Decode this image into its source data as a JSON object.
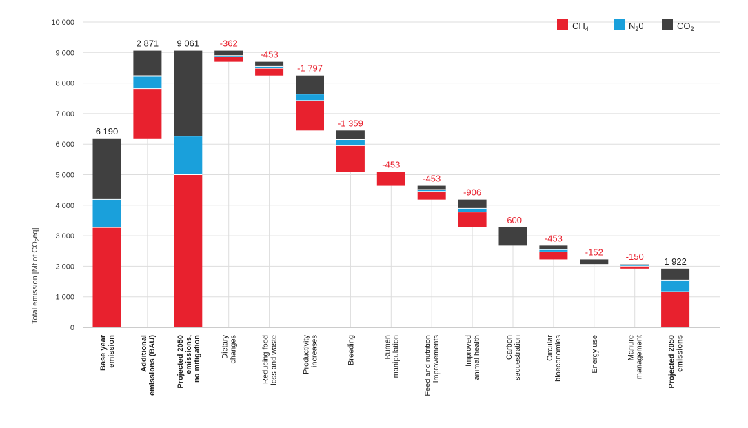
{
  "chart_data": {
    "type": "bar",
    "subtype": "stacked-waterfall",
    "ylabel": "Total emission [Mt of CO",
    "ylabel_sub": "2",
    "ylabel_tail": "eq]",
    "ylim": [
      0,
      10000
    ],
    "yticks": [
      0,
      1000,
      2000,
      3000,
      4000,
      5000,
      6000,
      7000,
      8000,
      9000,
      10000
    ],
    "ytick_labels": [
      "0",
      "1 000",
      "2 000",
      "3 000",
      "4 000",
      "5 000",
      "6 000",
      "7 000",
      "8 000",
      "9 000",
      "10 000"
    ],
    "grid": "horizontal",
    "legend_position": "top-right",
    "legend": [
      {
        "key": "ch4",
        "label": "CH",
        "sub": "4",
        "color": "#e8212e"
      },
      {
        "key": "n2o",
        "label": "N",
        "sub": "2",
        "tail": "0",
        "color": "#1aa0db"
      },
      {
        "key": "co2",
        "label": "CO",
        "sub": "2",
        "color": "#404040"
      }
    ],
    "bars": [
      {
        "name": "base-year-emission",
        "label": [
          "Base year",
          "emission"
        ],
        "bold": true,
        "kind": "total",
        "start": 0,
        "ch4": 3270,
        "n2o": 920,
        "co2": 2000,
        "value_label": "6 190"
      },
      {
        "name": "additional-emissions",
        "label": [
          "Additional",
          "emissions (BAU)"
        ],
        "bold": true,
        "kind": "increase",
        "start": 6190,
        "ch4": 1630,
        "n2o": 420,
        "co2": 821,
        "value_label": "2 871"
      },
      {
        "name": "projected-2050-no-mitigation",
        "label": [
          "Projected 2050",
          "emissions,",
          "no mitigation"
        ],
        "bold": true,
        "kind": "total",
        "start": 0,
        "ch4": 5000,
        "n2o": 1260,
        "co2": 2801,
        "value_label": "9 061"
      },
      {
        "name": "dietary-changes",
        "label": [
          "Dietary",
          "changes"
        ],
        "bold": false,
        "kind": "decrease",
        "start": 8699,
        "ch4": 160,
        "n2o": 40,
        "co2": 162,
        "value_label": "-362"
      },
      {
        "name": "reducing-food-loss",
        "label": [
          "Reducing food",
          "loss and waste"
        ],
        "bold": false,
        "kind": "decrease",
        "start": 8246,
        "ch4": 240,
        "n2o": 60,
        "co2": 153,
        "value_label": "-453"
      },
      {
        "name": "productivity-increases",
        "label": [
          "Productivity",
          "increases"
        ],
        "bold": false,
        "kind": "decrease",
        "start": 6449,
        "ch4": 980,
        "n2o": 210,
        "co2": 607,
        "value_label": "-1 797"
      },
      {
        "name": "breeding",
        "label": [
          "Breeding"
        ],
        "bold": false,
        "kind": "decrease",
        "start": 5090,
        "ch4": 860,
        "n2o": 200,
        "co2": 299,
        "value_label": "-1 359"
      },
      {
        "name": "rumen-manipulation",
        "label": [
          "Rumen",
          "manipulation"
        ],
        "bold": false,
        "kind": "decrease",
        "start": 4637,
        "ch4": 453,
        "n2o": 0,
        "co2": 0,
        "value_label": "-453"
      },
      {
        "name": "feed-nutrition-improvements",
        "label": [
          "Feed and nutrition",
          "improvements"
        ],
        "bold": false,
        "kind": "decrease",
        "start": 4184,
        "ch4": 270,
        "n2o": 60,
        "co2": 123,
        "value_label": "-453"
      },
      {
        "name": "improved-animal-health",
        "label": [
          "Improved",
          "animal health"
        ],
        "bold": false,
        "kind": "decrease",
        "start": 3278,
        "ch4": 500,
        "n2o": 120,
        "co2": 286,
        "value_label": "-906"
      },
      {
        "name": "carbon-sequestration",
        "label": [
          "Carbon",
          "sequestration"
        ],
        "bold": false,
        "kind": "decrease",
        "start": 2678,
        "ch4": 0,
        "n2o": 0,
        "co2": 600,
        "value_label": "-600"
      },
      {
        "name": "circular-bioeconomies",
        "label": [
          "Circular",
          "bioeconomies"
        ],
        "bold": false,
        "kind": "decrease",
        "start": 2225,
        "ch4": 250,
        "n2o": 70,
        "co2": 133,
        "value_label": "-453"
      },
      {
        "name": "energy-use",
        "label": [
          "Energy use"
        ],
        "bold": false,
        "kind": "decrease",
        "start": 2073,
        "ch4": 0,
        "n2o": 0,
        "co2": 152,
        "value_label": "-152"
      },
      {
        "name": "manure-management",
        "label": [
          "Manure",
          "management"
        ],
        "bold": false,
        "kind": "decrease",
        "start": 1923,
        "ch4": 80,
        "n2o": 50,
        "co2": 20,
        "value_label": "-150"
      },
      {
        "name": "projected-2050-emissions",
        "label": [
          "Projected 2050",
          "emissions"
        ],
        "bold": true,
        "kind": "total",
        "start": 0,
        "ch4": 1170,
        "n2o": 380,
        "co2": 372,
        "value_label": "1 922"
      }
    ]
  }
}
